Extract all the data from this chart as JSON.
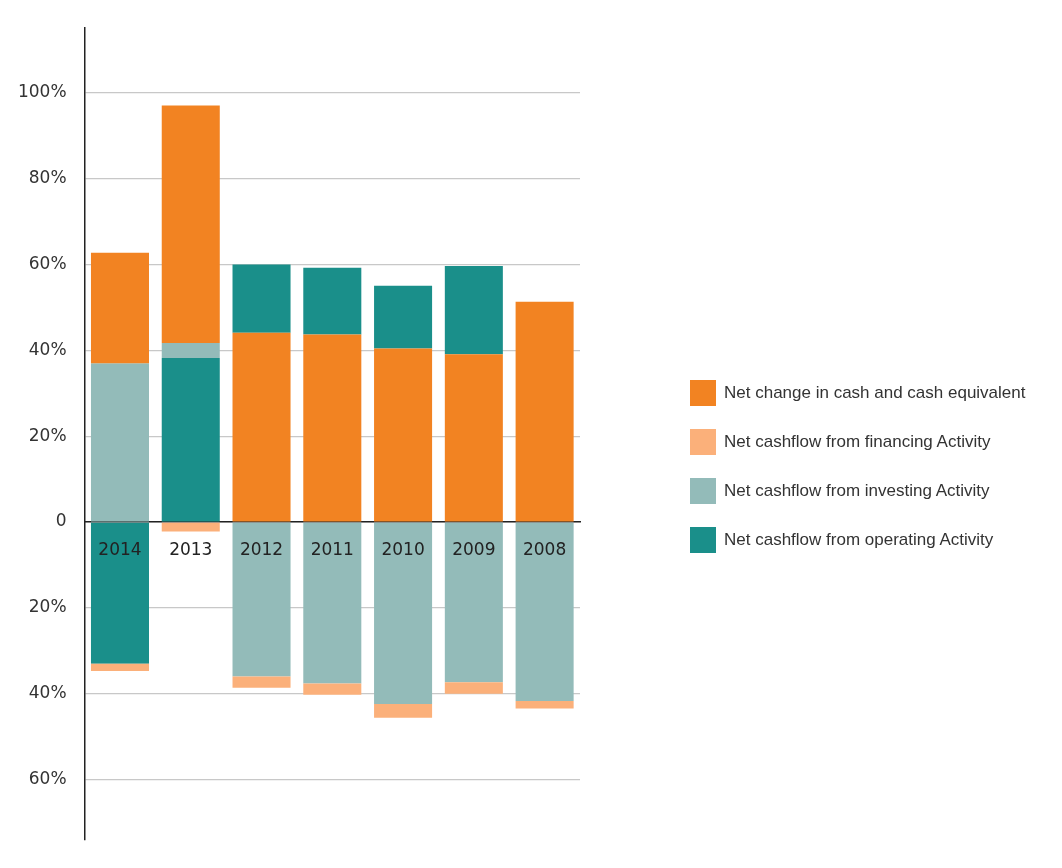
{
  "chart_data": {
    "type": "bar",
    "categories": [
      "2014",
      "2013",
      "2012",
      "2011",
      "2010",
      "2009",
      "2008"
    ],
    "series": [
      {
        "name": "Net change in cash and cash equivalent",
        "color": "#f28322",
        "values": [
          25.7,
          55.3,
          44.1,
          43.7,
          40.4,
          39.1,
          51.3
        ],
        "base": [
          37,
          41.7,
          0,
          0,
          0,
          0,
          0
        ]
      },
      {
        "name": "Net cashflow from financing Activity",
        "color": "#fbb07a",
        "values": [
          -1.7,
          -2.2,
          -2.6,
          -2.6,
          -3.2,
          -2.7,
          -1.7
        ],
        "base": [
          -33,
          0,
          -36,
          -37.6,
          -42.4,
          -37.3,
          -41.7
        ]
      },
      {
        "name": "Net cashflow from investing Activity",
        "color": "#93bbb9",
        "values": [
          37,
          3.5,
          -36,
          -37.6,
          -42.4,
          -37.3,
          -41.7
        ],
        "base": [
          0,
          38.2,
          0,
          0,
          0,
          0,
          0
        ]
      },
      {
        "name": "Net cashflow from operating Activity",
        "color": "#1a8f8a",
        "values": [
          -33,
          38.2,
          15.9,
          15.5,
          14.6,
          20.5,
          null
        ],
        "base": [
          0,
          0,
          44.1,
          43.7,
          40.4,
          39.1,
          null
        ]
      }
    ],
    "ylim": [
      -74,
      115
    ],
    "yticks": [
      {
        "value": -60,
        "label": "60%"
      },
      {
        "value": -40,
        "label": "40%"
      },
      {
        "value": -20,
        "label": "20%"
      },
      {
        "value": 0,
        "label": "0"
      },
      {
        "value": 20,
        "label": "20%"
      },
      {
        "value": 40,
        "label": "40%"
      },
      {
        "value": 60,
        "label": "60%"
      },
      {
        "value": 80,
        "label": "80%"
      },
      {
        "value": 100,
        "label": "100%"
      }
    ],
    "grid": "y",
    "legend": "right"
  }
}
